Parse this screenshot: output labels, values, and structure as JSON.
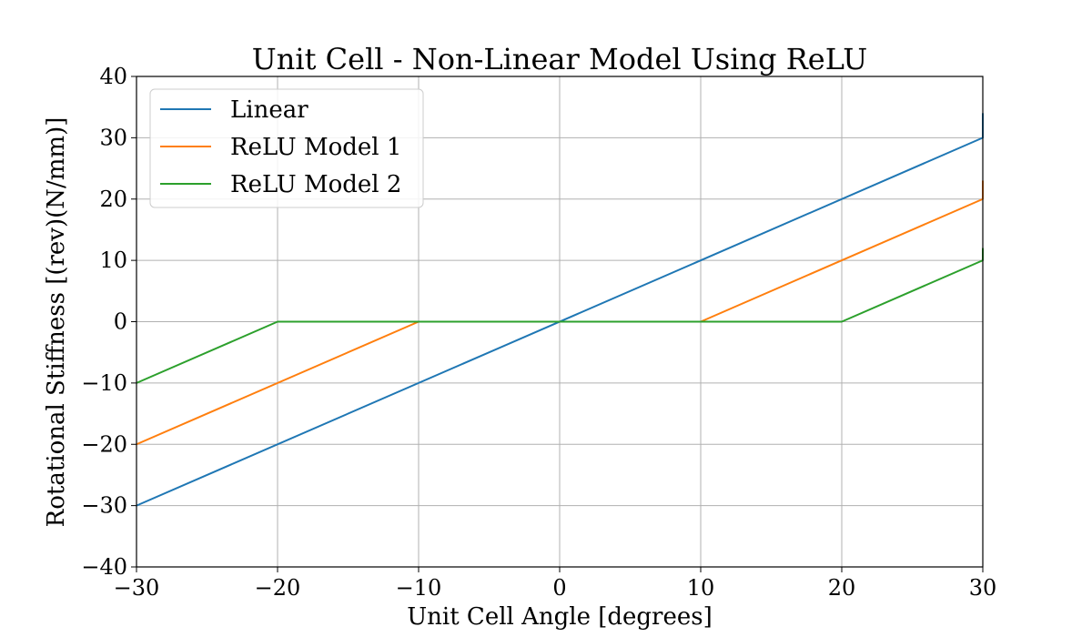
{
  "chart_data": {
    "type": "line",
    "title": "Unit Cell - Non-Linear Model Using ReLU",
    "xlabel": "Unit Cell Angle [degrees]",
    "ylabel": "Rotational Stiffness [(rev)(N/mm)]",
    "xlim": [
      -30,
      30
    ],
    "ylim": [
      -40,
      40
    ],
    "xticks": [
      -30,
      -20,
      -10,
      0,
      10,
      20,
      30
    ],
    "yticks": [
      -40,
      -30,
      -20,
      -10,
      0,
      10,
      20,
      30,
      40
    ],
    "xtick_labels": [
      "−30",
      "−20",
      "−10",
      "0",
      "10",
      "20",
      "30"
    ],
    "ytick_labels": [
      "−40",
      "−30",
      "−20",
      "−10",
      "0",
      "10",
      "20",
      "30",
      "40"
    ],
    "grid": true,
    "legend_position": "top-left",
    "series": [
      {
        "name": "Linear",
        "color": "#1f77b4",
        "points": [
          [
            -30,
            -30
          ],
          [
            30,
            30
          ],
          [
            30,
            34
          ]
        ]
      },
      {
        "name": "ReLU Model 1",
        "color": "#ff7f0e",
        "points": [
          [
            -30,
            -20
          ],
          [
            -10,
            0
          ],
          [
            10,
            0
          ],
          [
            30,
            20
          ],
          [
            30,
            23
          ]
        ]
      },
      {
        "name": "ReLU Model 2",
        "color": "#2ca02c",
        "points": [
          [
            -30,
            -10
          ],
          [
            -20,
            0
          ],
          [
            20,
            0
          ],
          [
            30,
            10
          ],
          [
            30,
            12
          ]
        ]
      }
    ]
  }
}
